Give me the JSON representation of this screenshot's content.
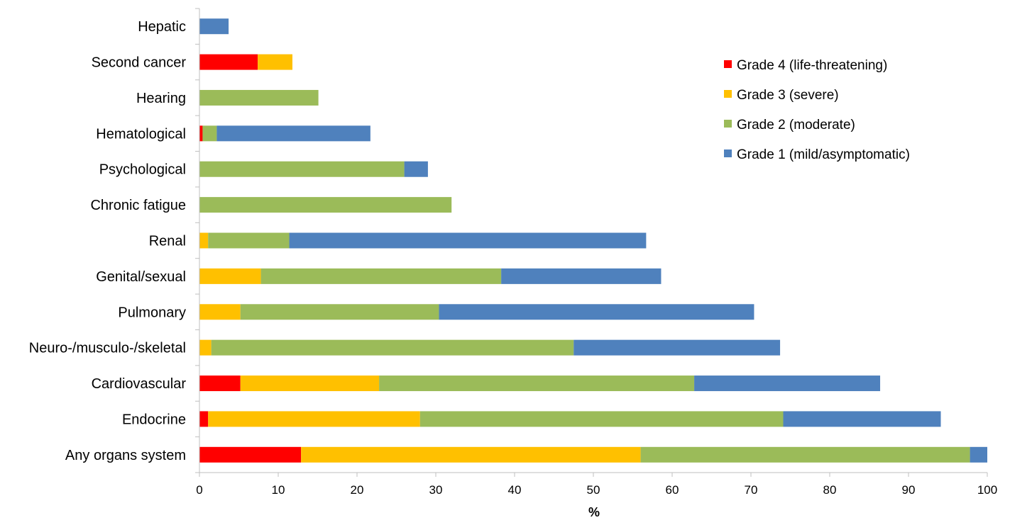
{
  "chart_data": {
    "type": "bar",
    "orientation": "horizontal",
    "stacked": true,
    "title": "",
    "xlabel": "%",
    "ylabel": "",
    "xlim": [
      0,
      100
    ],
    "xticks": [
      "0",
      "10",
      "20",
      "30",
      "40",
      "50",
      "60",
      "70",
      "80",
      "90",
      "100"
    ],
    "grid": false,
    "legend_position": "top-right",
    "categories": [
      "Hepatic",
      "Second cancer",
      "Hearing",
      "Hematological",
      "Psychological",
      "Chronic fatigue",
      "Renal",
      "Genital/sexual",
      "Pulmonary",
      "Neuro-/musculo-/skeletal",
      "Cardiovascular",
      "Endocrine",
      "Any organs system"
    ],
    "series": [
      {
        "name": "Grade 4 (life-threatening)",
        "color": "#ff0000",
        "values": [
          0,
          7.4,
          0,
          0.4,
          0,
          0,
          0,
          0,
          0,
          0,
          5.2,
          1.1,
          12.9
        ]
      },
      {
        "name": "Grade 3 (severe)",
        "color": "#ffc000",
        "values": [
          0,
          4.4,
          0,
          0,
          0,
          0,
          1.1,
          7.8,
          5.2,
          1.5,
          17.6,
          26.9,
          43.1
        ]
      },
      {
        "name": "Grade 2 (moderate)",
        "color": "#9bbb59",
        "values": [
          0,
          0,
          15.1,
          1.8,
          26.0,
          32.0,
          10.3,
          30.5,
          25.2,
          46.0,
          40.0,
          46.1,
          41.8
        ]
      },
      {
        "name": "Grade 1 (mild/asymptomatic)",
        "color": "#4f81bd",
        "values": [
          3.7,
          0,
          0,
          19.5,
          3.0,
          0,
          45.3,
          20.3,
          40.0,
          26.2,
          23.6,
          20.0,
          2.2
        ]
      }
    ],
    "legend_order": [
      0,
      1,
      2,
      3
    ]
  }
}
